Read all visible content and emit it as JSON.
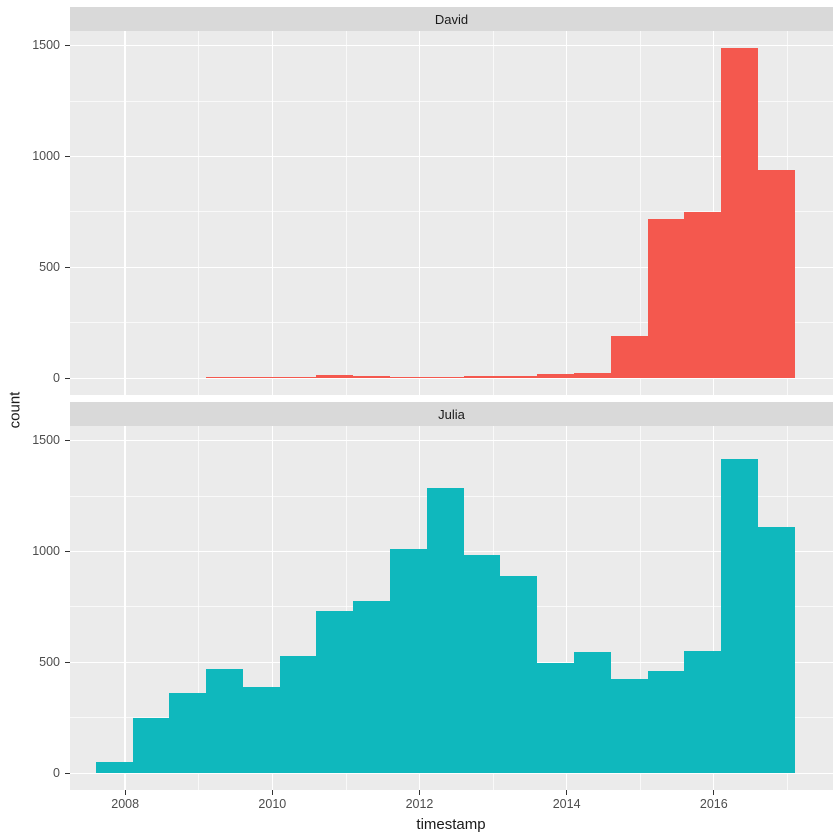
{
  "chart_data": {
    "type": "bar",
    "subtype": "faceted-histogram",
    "title": "",
    "xlabel": "timestamp",
    "ylabel": "count",
    "legend": "none",
    "grid": "on",
    "x_ticks": [
      2008,
      2010,
      2012,
      2014,
      2016
    ],
    "x_minor_ticks": [
      2009,
      2011,
      2013,
      2015,
      2017
    ],
    "y_ticks": [
      0,
      500,
      1000,
      1500
    ],
    "y_minor_ticks": [
      250,
      750,
      1250
    ],
    "x_domain": [
      2007.25,
      2017.62
    ],
    "y_domain_expanded": [
      -75,
      1565
    ],
    "bin_start": 2007.6,
    "bin_width": 0.5,
    "panel_background": "#EBEBEB",
    "strip_background": "#D9D9D9",
    "gridline_color": "#FFFFFF",
    "tick_color": "#333333",
    "tick_label_color": "#4D4D4D",
    "facets": [
      {
        "label": "David",
        "color": "#F4584E",
        "values": [
          0,
          0,
          0,
          8,
          6,
          5,
          13,
          10,
          8,
          8,
          10,
          12,
          18,
          25,
          190,
          720,
          750,
          1490,
          940
        ]
      },
      {
        "label": "Julia",
        "color": "#0FB8BD",
        "values": [
          50,
          250,
          360,
          470,
          390,
          530,
          730,
          775,
          1010,
          1285,
          985,
          890,
          495,
          545,
          425,
          460,
          550,
          1415,
          1110
        ]
      }
    ]
  }
}
